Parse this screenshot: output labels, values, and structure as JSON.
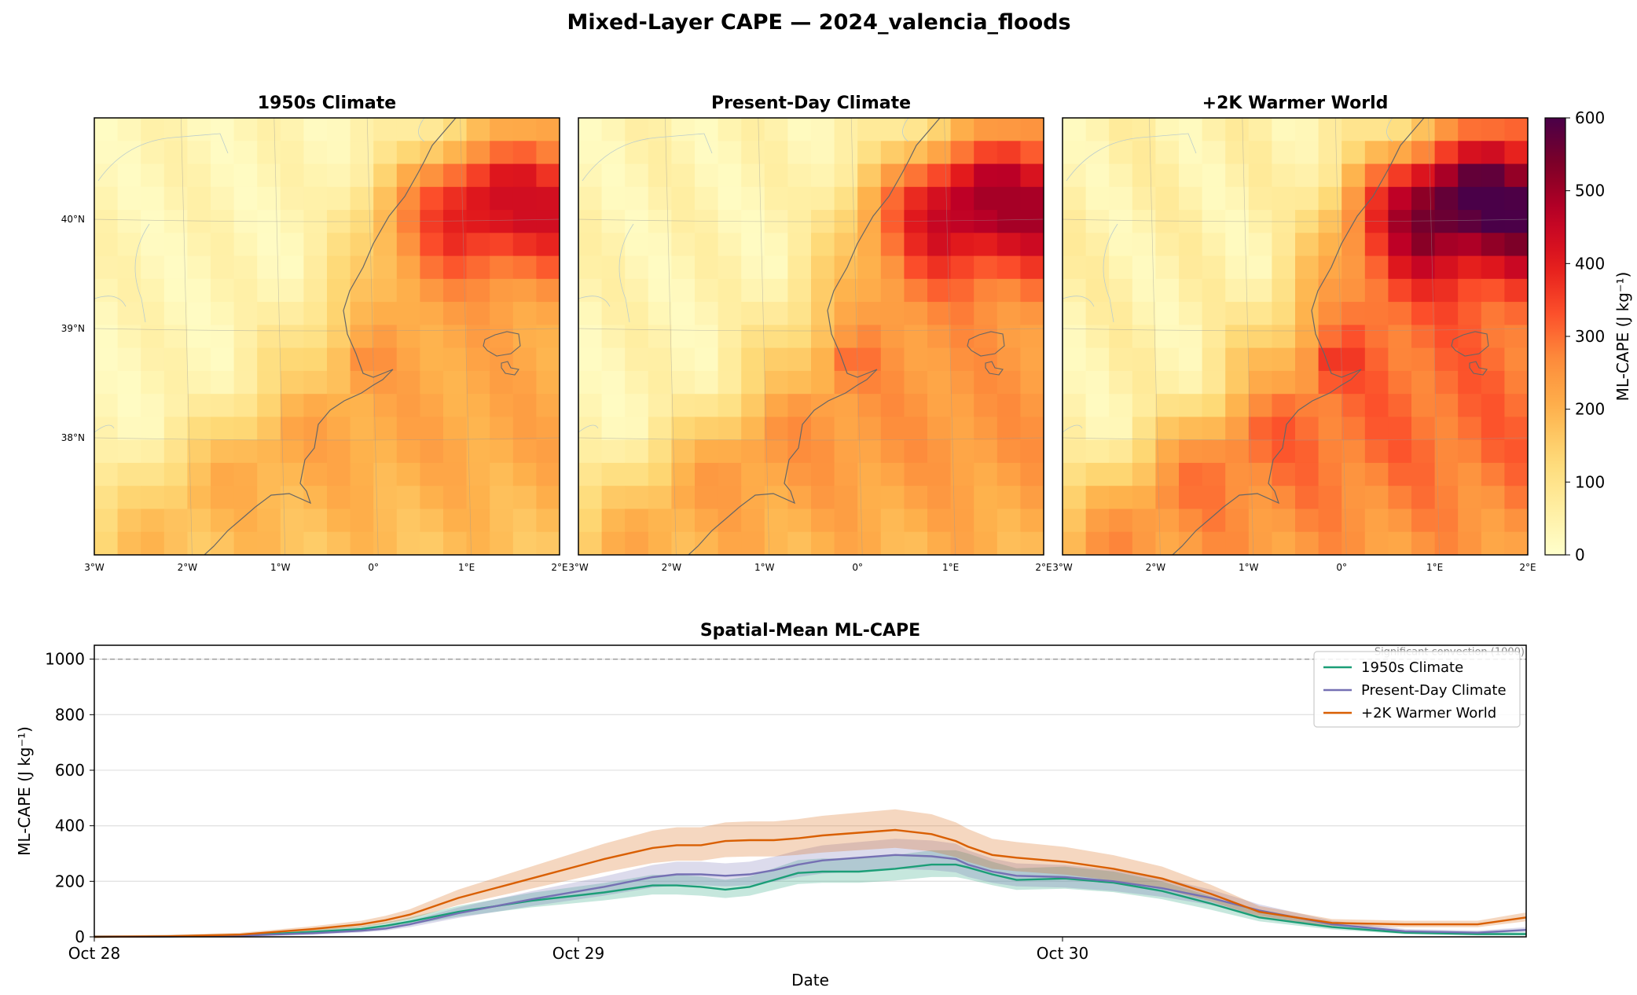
{
  "figure": {
    "title": "Mixed-Layer CAPE — 2024_valencia_floods"
  },
  "maps": {
    "panels": [
      {
        "title": "1950s Climate",
        "scale": 0.72
      },
      {
        "title": "Present-Day Climate",
        "scale": 0.82
      },
      {
        "title": "+2K Warmer World",
        "scale": 1.0
      }
    ],
    "lon_ticks": [
      "3°W",
      "2°W",
      "1°W",
      "0°",
      "1°E",
      "2°E"
    ],
    "lat_ticks": [
      "40°N",
      "39°N",
      "38°N"
    ],
    "colorbar": {
      "label": "ML-CAPE (J kg⁻¹)",
      "ticks": [
        "0",
        "100",
        "200",
        "300",
        "400",
        "500",
        "600"
      ],
      "range": [
        0,
        600
      ],
      "colormap": "YlOrRd-to-purple",
      "colors": [
        "#ffffcc",
        "#ffeda0",
        "#fed976",
        "#feb24c",
        "#fd8d3c",
        "#fc4e2a",
        "#e31a1c",
        "#bd0026",
        "#800026",
        "#4a0048"
      ]
    },
    "extent": {
      "lon": [
        -3,
        2
      ],
      "lat": [
        37,
        41
      ]
    }
  },
  "chart_data": {
    "type": "line",
    "title": "Spatial-Mean ML-CAPE",
    "xlabel": "Date",
    "ylabel": "ML-CAPE (J kg⁻¹)",
    "ylim": [
      0,
      1050
    ],
    "yticks": [
      0,
      200,
      400,
      600,
      800,
      1000
    ],
    "xticks": [
      "Oct 28",
      "Oct 29",
      "Oct 30"
    ],
    "x_hours_since_oct28": [
      0,
      6,
      12,
      18,
      22,
      24,
      26,
      30,
      36,
      42,
      46,
      48,
      50,
      52,
      54,
      56,
      58,
      60,
      63,
      66,
      69,
      71,
      72,
      74,
      76,
      80,
      84,
      88,
      92,
      96,
      102,
      108,
      114,
      118
    ],
    "grid": "horizontal",
    "legend": "top-right",
    "threshold": {
      "value": 1000,
      "label": "Significant convection (1000)"
    },
    "series": [
      {
        "name": "1950s Climate",
        "color": "#1b9e77",
        "values": [
          0,
          1,
          5,
          18,
          28,
          40,
          55,
          90,
          130,
          160,
          185,
          185,
          180,
          170,
          180,
          205,
          230,
          235,
          235,
          245,
          260,
          260,
          250,
          225,
          205,
          210,
          195,
          165,
          120,
          70,
          35,
          15,
          10,
          10
        ]
      },
      {
        "name": "Present-Day Climate",
        "color": "#7570b3",
        "values": [
          0,
          1,
          4,
          13,
          22,
          30,
          45,
          85,
          135,
          180,
          215,
          225,
          225,
          220,
          225,
          240,
          260,
          275,
          285,
          295,
          290,
          280,
          260,
          235,
          220,
          215,
          200,
          175,
          140,
          95,
          45,
          20,
          15,
          25
        ]
      },
      {
        "name": "+2K Warmer World",
        "color": "#d95f02",
        "values": [
          0,
          2,
          8,
          28,
          45,
          60,
          80,
          140,
          210,
          280,
          320,
          330,
          330,
          345,
          348,
          348,
          355,
          365,
          375,
          385,
          370,
          345,
          325,
          295,
          285,
          270,
          245,
          210,
          155,
          90,
          50,
          45,
          45,
          70
        ]
      }
    ]
  }
}
